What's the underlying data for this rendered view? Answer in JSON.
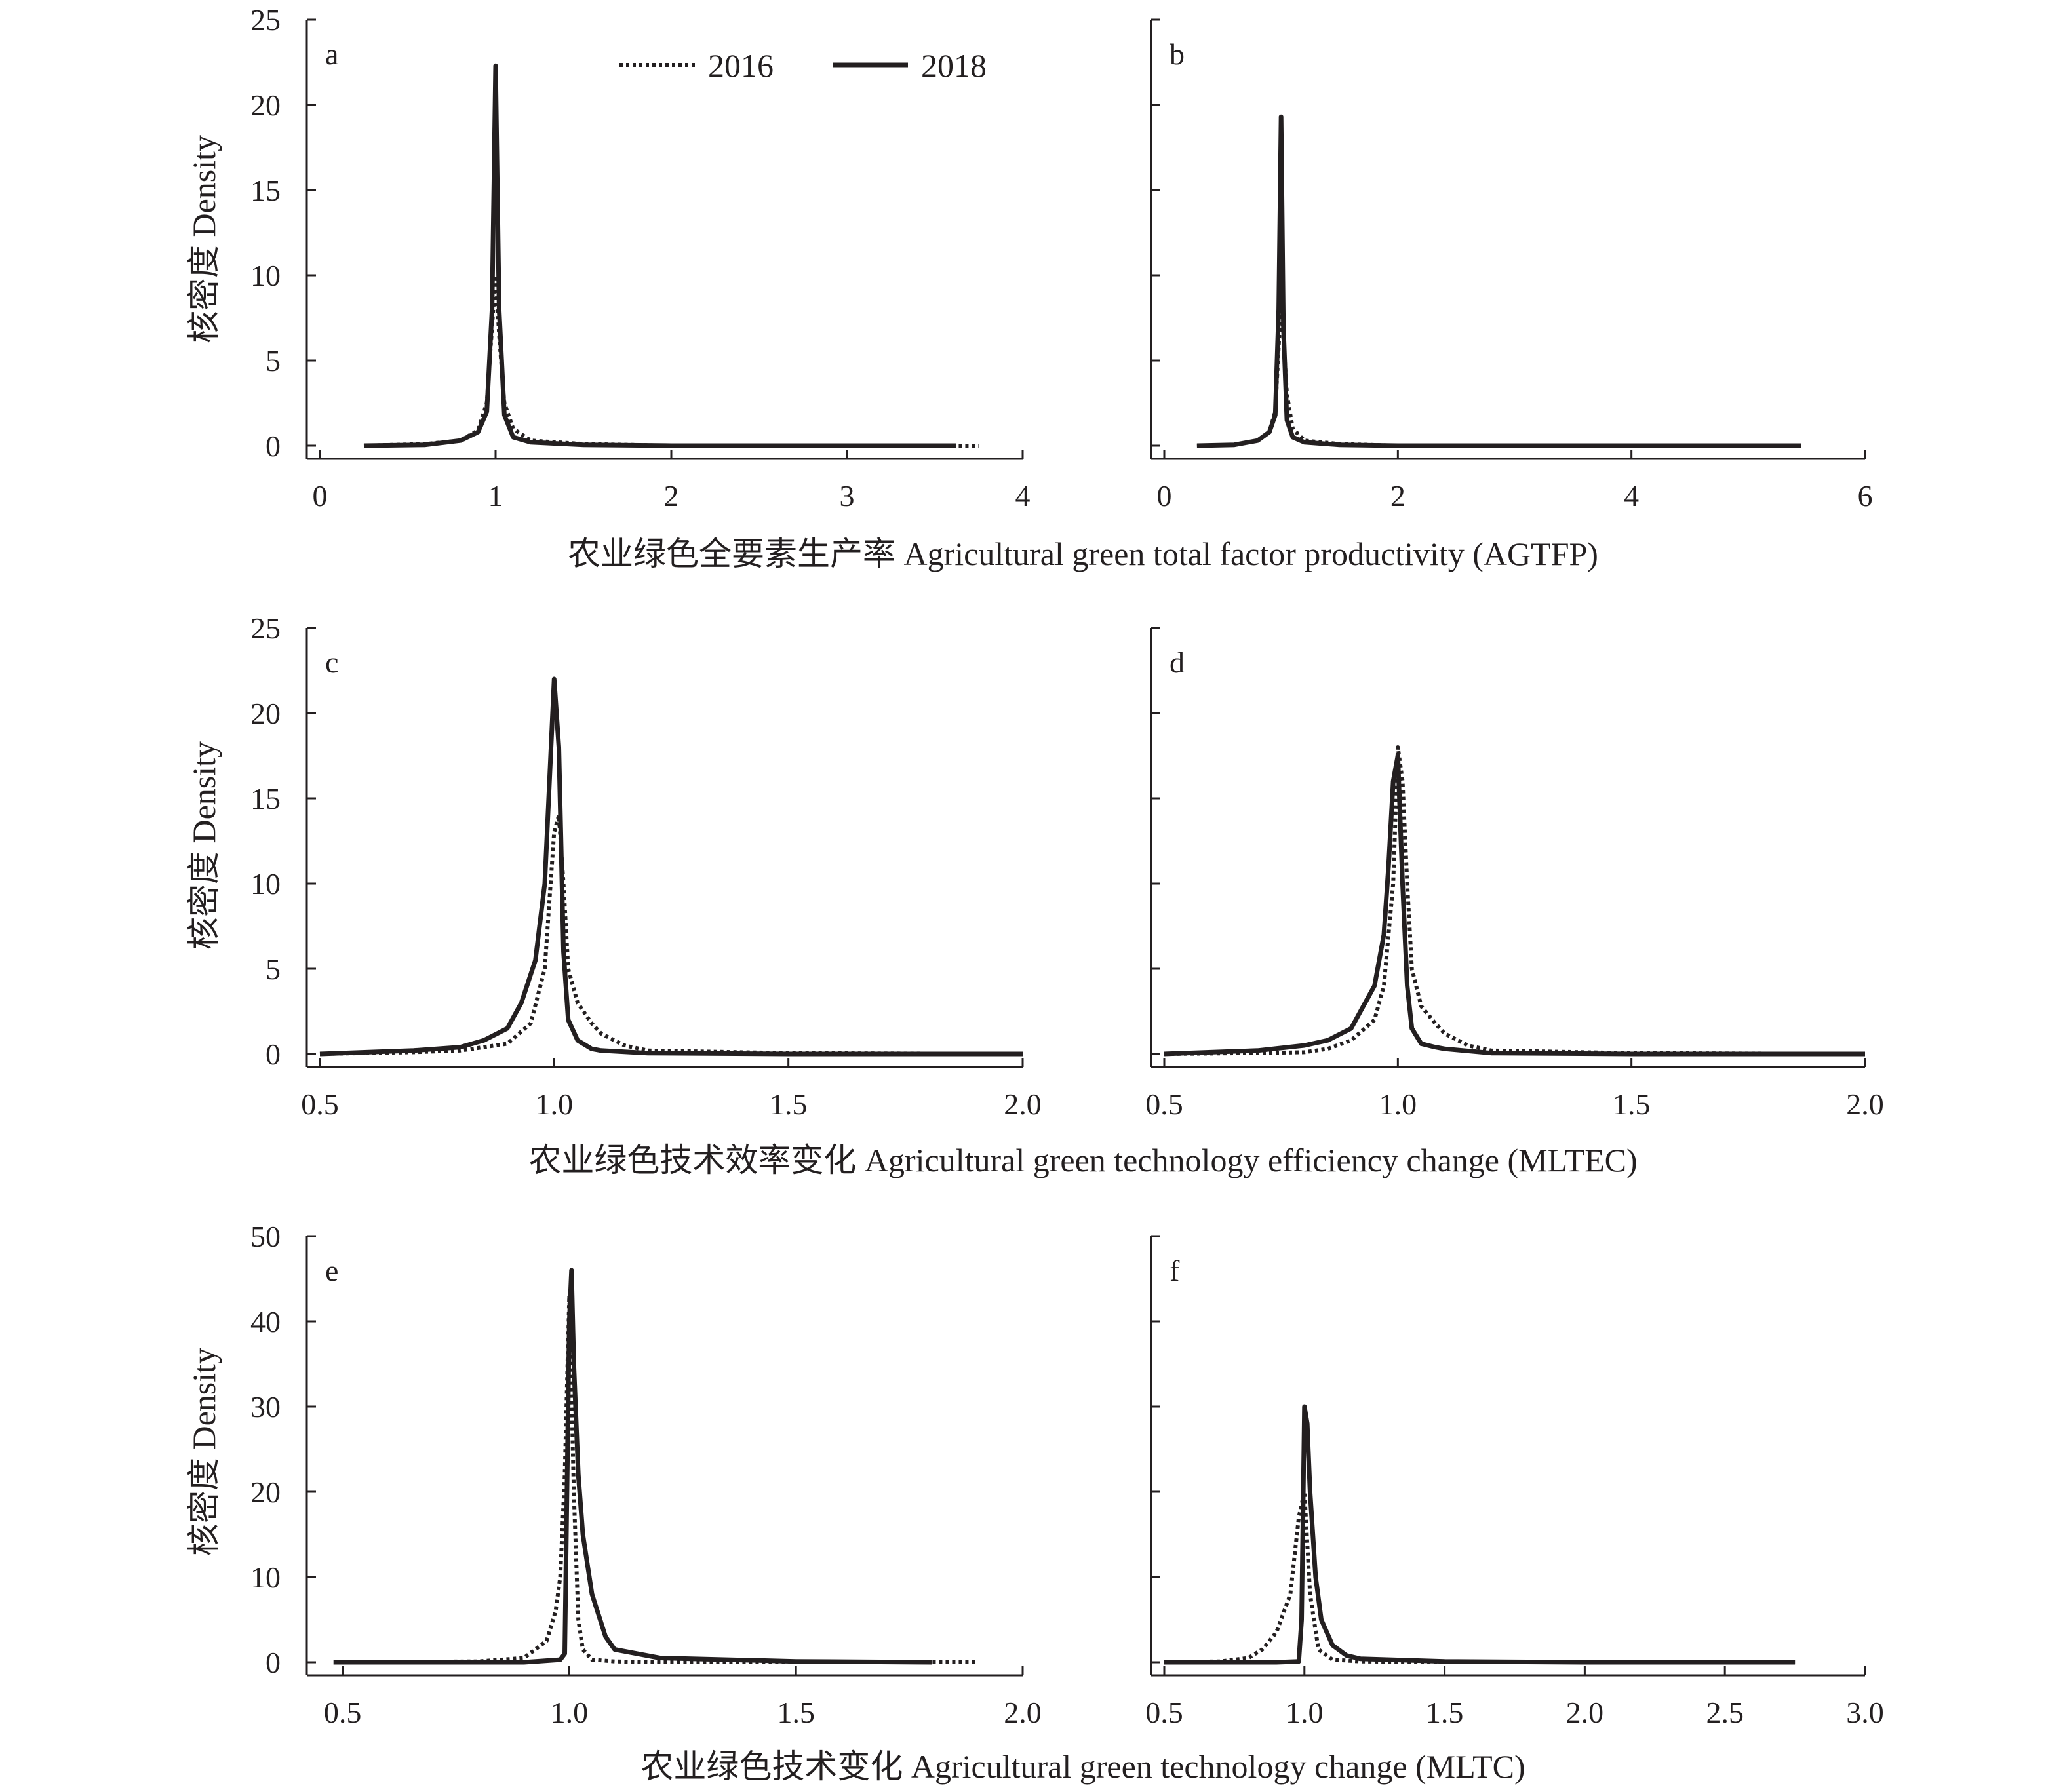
{
  "legend": {
    "series_2016": "2016",
    "series_2018": "2018"
  },
  "ylabel": "核密度  Density",
  "xlabels": [
    "农业绿色全要素生产率 Agricultural green total factor productivity (AGTFP)",
    "农业绿色技术效率变化 Agricultural green technology efficiency change (MLTEC)",
    "农业绿色技术变化 Agricultural green technology change (MLTC)"
  ],
  "chart_data": [
    {
      "type": "line",
      "panel": "a",
      "xlim": [
        0,
        4
      ],
      "ylim": [
        0,
        25
      ],
      "xticks": [
        "0",
        "1",
        "2",
        "3",
        "4"
      ],
      "yticks": [
        "0",
        "5",
        "10",
        "15",
        "20",
        "25"
      ],
      "series": [
        {
          "name": "2016",
          "x": [
            0.25,
            0.6,
            0.8,
            0.9,
            0.95,
            0.98,
            1.0,
            1.02,
            1.05,
            1.1,
            1.2,
            1.5,
            2.0,
            3.0,
            3.75
          ],
          "y": [
            0,
            0.1,
            0.3,
            0.9,
            2.5,
            7,
            10,
            6.5,
            2.5,
            1.0,
            0.3,
            0.1,
            0,
            0,
            0
          ]
        },
        {
          "name": "2018",
          "x": [
            0.25,
            0.6,
            0.8,
            0.9,
            0.95,
            0.98,
            1.0,
            1.02,
            1.05,
            1.1,
            1.2,
            1.5,
            2.0,
            3.0,
            3.62
          ],
          "y": [
            0,
            0.05,
            0.3,
            0.8,
            2.0,
            8,
            22.3,
            8,
            1.8,
            0.5,
            0.2,
            0.05,
            0,
            0,
            0
          ]
        }
      ]
    },
    {
      "type": "line",
      "panel": "b",
      "xlim": [
        0,
        6
      ],
      "ylim": [
        0,
        25
      ],
      "xticks": [
        "0",
        "2",
        "4",
        "6"
      ],
      "yticks": [],
      "series": [
        {
          "name": "2016",
          "x": [
            0.28,
            0.6,
            0.8,
            0.9,
            0.95,
            1.0,
            1.05,
            1.1,
            1.2,
            1.5,
            2.0,
            3.0,
            4.0,
            5.45
          ],
          "y": [
            0,
            0.05,
            0.3,
            0.8,
            2.0,
            8.5,
            3.0,
            1.0,
            0.3,
            0.1,
            0,
            0,
            0,
            0
          ]
        },
        {
          "name": "2018",
          "x": [
            0.28,
            0.6,
            0.8,
            0.9,
            0.95,
            0.98,
            1.0,
            1.02,
            1.05,
            1.1,
            1.2,
            1.5,
            2.0,
            3.0,
            4.0,
            5.45
          ],
          "y": [
            0,
            0.05,
            0.3,
            0.8,
            1.8,
            8,
            19.3,
            7,
            1.5,
            0.5,
            0.2,
            0.05,
            0,
            0,
            0,
            0
          ]
        }
      ]
    },
    {
      "type": "line",
      "panel": "c",
      "xlim": [
        0.5,
        2.0
      ],
      "ylim": [
        0,
        25
      ],
      "xticks": [
        "0.5",
        "1.0",
        "1.5",
        "2.0"
      ],
      "yticks": [
        "0",
        "5",
        "10",
        "15",
        "20",
        "25"
      ],
      "series": [
        {
          "name": "2016",
          "x": [
            0.5,
            0.7,
            0.8,
            0.9,
            0.95,
            0.98,
            1.0,
            1.01,
            1.02,
            1.03,
            1.05,
            1.08,
            1.1,
            1.15,
            1.2,
            1.5,
            2.0
          ],
          "y": [
            0,
            0.1,
            0.2,
            0.6,
            1.8,
            5,
            13,
            14,
            10,
            5,
            3,
            1.8,
            1.2,
            0.5,
            0.2,
            0.05,
            0
          ]
        },
        {
          "name": "2018",
          "x": [
            0.5,
            0.6,
            0.7,
            0.8,
            0.85,
            0.9,
            0.93,
            0.96,
            0.98,
            0.99,
            1.0,
            1.01,
            1.02,
            1.03,
            1.05,
            1.08,
            1.1,
            1.2,
            1.5,
            2.0
          ],
          "y": [
            0,
            0.1,
            0.2,
            0.4,
            0.8,
            1.5,
            3,
            5.5,
            10,
            16,
            22,
            18,
            6,
            2,
            0.8,
            0.3,
            0.2,
            0.05,
            0,
            0
          ]
        }
      ]
    },
    {
      "type": "line",
      "panel": "d",
      "xlim": [
        0.5,
        2.0
      ],
      "ylim": [
        0,
        25
      ],
      "xticks": [
        "0.5",
        "1.0",
        "1.5",
        "2.0"
      ],
      "yticks": [],
      "series": [
        {
          "name": "2016",
          "x": [
            0.5,
            0.7,
            0.8,
            0.85,
            0.9,
            0.95,
            0.97,
            0.99,
            1.0,
            1.01,
            1.02,
            1.03,
            1.05,
            1.08,
            1.1,
            1.15,
            1.2,
            1.5,
            2.0
          ],
          "y": [
            0,
            0.05,
            0.1,
            0.3,
            0.8,
            2,
            4,
            10,
            18,
            16,
            10,
            5,
            2.8,
            1.8,
            1.2,
            0.5,
            0.2,
            0.05,
            0
          ]
        },
        {
          "name": "2018",
          "x": [
            0.5,
            0.6,
            0.7,
            0.8,
            0.85,
            0.9,
            0.92,
            0.95,
            0.97,
            0.98,
            0.99,
            1.0,
            1.01,
            1.02,
            1.03,
            1.05,
            1.08,
            1.1,
            1.2,
            1.5,
            2.0
          ],
          "y": [
            0,
            0.1,
            0.2,
            0.5,
            0.8,
            1.5,
            2.5,
            4,
            7,
            11,
            16,
            17.5,
            10,
            4,
            1.5,
            0.6,
            0.4,
            0.3,
            0.05,
            0,
            0
          ]
        }
      ]
    },
    {
      "type": "line",
      "panel": "e",
      "xlim": [
        0.45,
        2.0
      ],
      "ylim": [
        0,
        50
      ],
      "xticks": [
        "0.5",
        "1.0",
        "1.5",
        "2.0"
      ],
      "yticks": [
        "0",
        "10",
        "20",
        "30",
        "40",
        "50"
      ],
      "series": [
        {
          "name": "2016",
          "x": [
            0.5,
            0.8,
            0.9,
            0.95,
            0.97,
            0.98,
            0.99,
            1.0,
            1.01,
            1.02,
            1.03,
            1.05,
            1.1,
            1.2,
            1.5,
            1.9
          ],
          "y": [
            0,
            0.1,
            0.5,
            2.5,
            6,
            10,
            22,
            43,
            20,
            5,
            1.5,
            0.3,
            0.1,
            0,
            0,
            0
          ]
        },
        {
          "name": "2018",
          "x": [
            0.48,
            0.7,
            0.9,
            0.98,
            0.99,
            1.0,
            1.005,
            1.01,
            1.02,
            1.03,
            1.05,
            1.08,
            1.1,
            1.2,
            1.5,
            1.8
          ],
          "y": [
            0,
            0,
            0,
            0.3,
            1,
            40,
            46,
            35,
            22,
            15,
            8,
            3,
            1.5,
            0.5,
            0.1,
            0
          ]
        }
      ]
    },
    {
      "type": "line",
      "panel": "f",
      "xlim": [
        0.5,
        3.0
      ],
      "ylim": [
        0,
        50
      ],
      "xticks": [
        "0.5",
        "1.0",
        "1.5",
        "2.0",
        "2.5",
        "3.0"
      ],
      "yticks": [],
      "series": [
        {
          "name": "2016",
          "x": [
            0.5,
            0.7,
            0.8,
            0.85,
            0.9,
            0.95,
            0.98,
            1.0,
            1.02,
            1.05,
            1.1,
            1.2,
            1.5,
            2.0,
            2.5,
            2.75
          ],
          "y": [
            0,
            0.1,
            0.5,
            1.5,
            3.5,
            8,
            17,
            20,
            8,
            1.5,
            0.3,
            0.1,
            0,
            0,
            0,
            0
          ]
        },
        {
          "name": "2018",
          "x": [
            0.5,
            0.7,
            0.9,
            0.98,
            0.99,
            1.0,
            1.01,
            1.02,
            1.04,
            1.06,
            1.1,
            1.15,
            1.2,
            1.5,
            2.0,
            2.5,
            2.75
          ],
          "y": [
            0,
            0,
            0,
            0.1,
            5,
            30,
            28,
            20,
            10,
            5,
            2,
            0.8,
            0.4,
            0.1,
            0,
            0,
            0
          ]
        }
      ]
    }
  ]
}
